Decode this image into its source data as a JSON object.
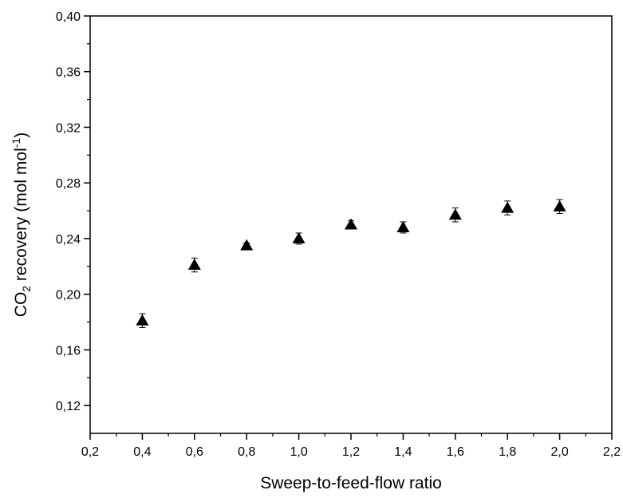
{
  "chart_data": {
    "type": "scatter",
    "xlabel": "Sweep-to-feed-flow ratio",
    "ylabel": {
      "prefix": "CO",
      "sub": "2",
      "middle": " recovery (mol mol",
      "sup": "-1",
      "suffix": ")"
    },
    "xlim": [
      0.2,
      2.2
    ],
    "ylim": [
      0.1,
      0.4
    ],
    "xticks": [
      0.2,
      0.4,
      0.6,
      0.8,
      1.0,
      1.2,
      1.4,
      1.6,
      1.8,
      2.0,
      2.2
    ],
    "xtick_labels": [
      "0,2",
      "0,4",
      "0,6",
      "0,8",
      "1,0",
      "1,2",
      "1,4",
      "1,6",
      "1,8",
      "2,0",
      "2,2"
    ],
    "yticks": [
      0.12,
      0.16,
      0.2,
      0.24,
      0.28,
      0.32,
      0.36,
      0.4
    ],
    "ytick_labels": [
      "0,12",
      "0,16",
      "0,20",
      "0,24",
      "0,28",
      "0,32",
      "0,36",
      "0,40"
    ],
    "grid": false,
    "marker": "triangle",
    "color": "#000000",
    "series": [
      {
        "x": [
          0.4,
          0.6,
          0.8,
          1.0,
          1.2,
          1.4,
          1.6,
          1.8,
          2.0
        ],
        "y": [
          0.181,
          0.221,
          0.235,
          0.24,
          0.25,
          0.248,
          0.257,
          0.262,
          0.263
        ],
        "err": [
          0.005,
          0.005,
          0.002,
          0.004,
          0.003,
          0.004,
          0.005,
          0.005,
          0.005
        ]
      }
    ]
  }
}
